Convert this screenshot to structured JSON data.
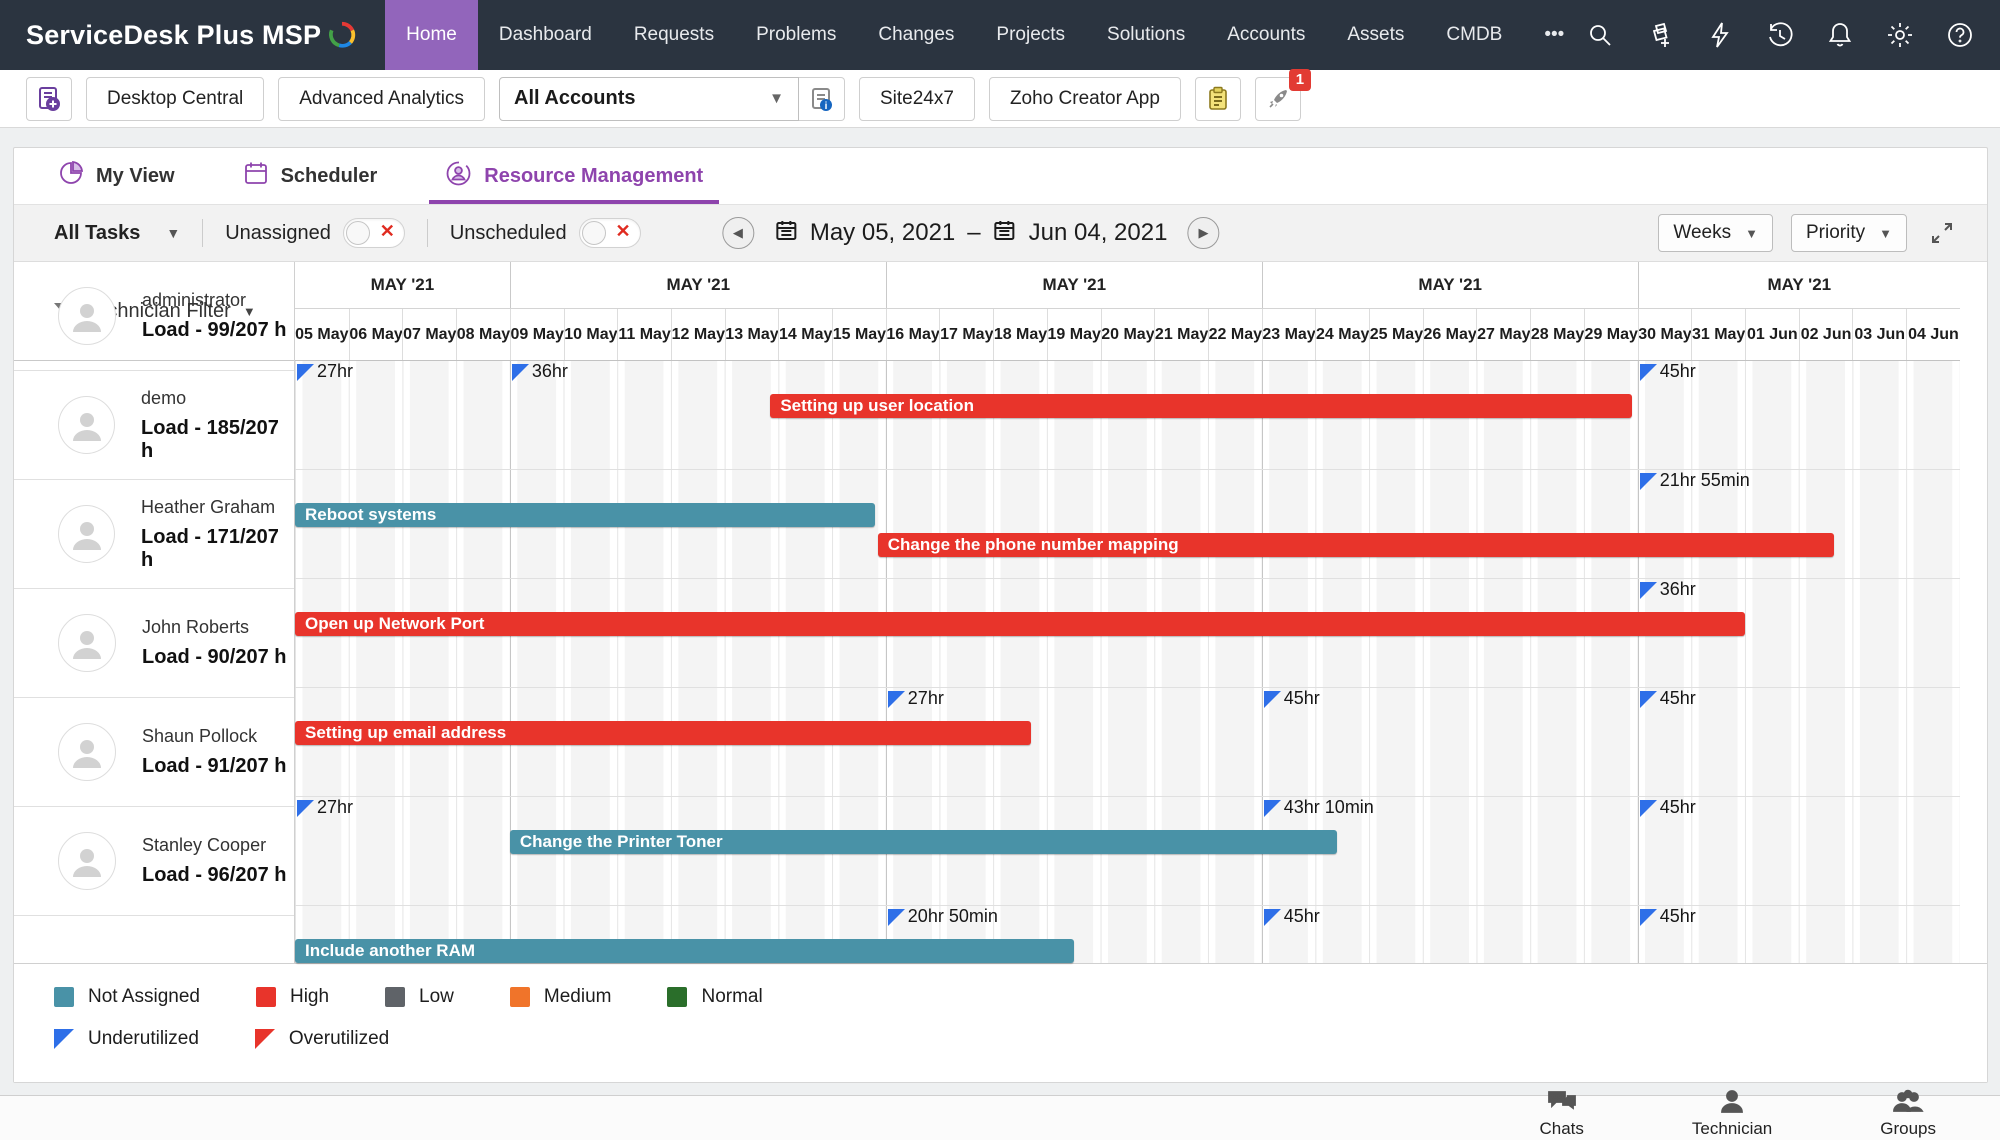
{
  "nav": {
    "brand": "ServiceDesk Plus MSP",
    "active": "Home",
    "items": [
      "Home",
      "Dashboard",
      "Requests",
      "Problems",
      "Changes",
      "Projects",
      "Solutions",
      "Accounts",
      "Assets",
      "CMDB",
      "•••"
    ],
    "icons": [
      "search-icon",
      "ticket-add-icon",
      "bolt-icon",
      "history-icon",
      "bell-icon",
      "gear-icon",
      "help-icon",
      "avatar"
    ]
  },
  "toolbar": {
    "buttons": [
      "Desktop Central",
      "Advanced Analytics"
    ],
    "account_dropdown": {
      "value": "All Accounts"
    },
    "app_buttons": [
      "Site24x7",
      "Zoho Creator App"
    ],
    "badge_count": "1"
  },
  "tabs": [
    {
      "label": "My View",
      "icon": "pie-chart-icon",
      "active": false
    },
    {
      "label": "Scheduler",
      "icon": "calendar-icon",
      "active": false
    },
    {
      "label": "Resource Management",
      "icon": "technician-icon",
      "active": true
    }
  ],
  "filter_bar": {
    "task_filter": "All Tasks",
    "unassigned_label": "Unassigned",
    "unscheduled_label": "Unscheduled",
    "date_start": "May 05, 2021",
    "date_separator": "–",
    "date_end": "Jun 04, 2021",
    "zoom_select": "Weeks",
    "sort_select": "Priority"
  },
  "grid": {
    "left_header": "Technician Filter",
    "weeks": [
      {
        "label": "MAY '21",
        "days": 4
      },
      {
        "label": "MAY '21",
        "days": 7
      },
      {
        "label": "MAY '21",
        "days": 7
      },
      {
        "label": "MAY '21",
        "days": 7
      },
      {
        "label": "MAY '21",
        "days": 6
      }
    ],
    "days": [
      "05 May",
      "06 May",
      "07 May",
      "08 May",
      "09 May",
      "10 May",
      "11 May",
      "12 May",
      "13 May",
      "14 May",
      "15 May",
      "16 May",
      "17 May",
      "18 May",
      "19 May",
      "20 May",
      "21 May",
      "22 May",
      "23 May",
      "24 May",
      "25 May",
      "26 May",
      "27 May",
      "28 May",
      "29 May",
      "30 May",
      "31 May",
      "01 Jun",
      "02 Jun",
      "03 Jun",
      "04 Jun"
    ],
    "rows": [
      {
        "name": "administrator",
        "load": "Load - 99/207 h",
        "markers": [
          {
            "day": 0,
            "label": "27hr"
          },
          {
            "day": 4,
            "label": "36hr"
          },
          {
            "day": 25,
            "label": "45hr"
          }
        ],
        "bars": [
          {
            "label": "Setting up user location",
            "priority": "high",
            "start": 8.85,
            "duration": 16.05,
            "lane": 0
          }
        ]
      },
      {
        "name": "demo",
        "load": "Load - 185/207 h",
        "markers": [
          {
            "day": 25,
            "label": "21hr 55min"
          }
        ],
        "bars": [
          {
            "label": "Reboot systems",
            "priority": "not_assigned",
            "start": 0,
            "duration": 10.8,
            "lane": 0
          },
          {
            "label": "Change the phone number mapping",
            "priority": "high",
            "start": 10.85,
            "duration": 17.8,
            "lane": 1
          }
        ]
      },
      {
        "name": "Heather Graham",
        "load": "Load - 171/207 h",
        "markers": [
          {
            "day": 25,
            "label": "36hr"
          }
        ],
        "bars": [
          {
            "label": "Open up Network Port",
            "priority": "high",
            "start": 0,
            "duration": 27,
            "lane": 0
          }
        ]
      },
      {
        "name": "John Roberts",
        "load": "Load - 90/207 h",
        "markers": [
          {
            "day": 11,
            "label": "27hr"
          },
          {
            "day": 18,
            "label": "45hr"
          },
          {
            "day": 25,
            "label": "45hr"
          }
        ],
        "bars": [
          {
            "label": "Setting up email address",
            "priority": "high",
            "start": 0,
            "duration": 13.7,
            "lane": 0
          }
        ]
      },
      {
        "name": "Shaun Pollock",
        "load": "Load - 91/207 h",
        "markers": [
          {
            "day": 0,
            "label": "27hr"
          },
          {
            "day": 18,
            "label": "43hr 10min"
          },
          {
            "day": 25,
            "label": "45hr"
          }
        ],
        "bars": [
          {
            "label": "Change the Printer Toner",
            "priority": "not_assigned",
            "start": 4,
            "duration": 15.4,
            "lane": 0
          }
        ]
      },
      {
        "name": "Stanley Cooper",
        "load": "Load - 96/207 h",
        "markers": [
          {
            "day": 11,
            "label": "20hr 50min"
          },
          {
            "day": 18,
            "label": "45hr"
          },
          {
            "day": 25,
            "label": "45hr"
          }
        ],
        "bars": [
          {
            "label": "Include another RAM",
            "priority": "not_assigned",
            "start": 0,
            "duration": 14.5,
            "lane": 0
          }
        ]
      }
    ]
  },
  "legend": {
    "priorities": [
      {
        "label": "Not Assigned",
        "color": "#4992a7"
      },
      {
        "label": "High",
        "color": "#e8342b"
      },
      {
        "label": "Low",
        "color": "#5f6368"
      },
      {
        "label": "Medium",
        "color": "#f0742a"
      },
      {
        "label": "Normal",
        "color": "#2a6e2a"
      }
    ],
    "utilization": [
      {
        "label": "Underutilized",
        "color": "#2e6fe8"
      },
      {
        "label": "Overutilized",
        "color": "#e8342b"
      }
    ]
  },
  "dock": {
    "items": [
      {
        "label": "Chats",
        "icon": "chats-icon"
      },
      {
        "label": "Technician",
        "icon": "technician-icon"
      },
      {
        "label": "Groups",
        "icon": "groups-icon"
      }
    ]
  },
  "colors": {
    "nav_bg": "#2b3440",
    "accent_purple": "#8e44ad",
    "high": "#e8342b",
    "not_assigned": "#4992a7",
    "marker_blue": "#2e6fe8",
    "badge_red": "#e23b33"
  }
}
